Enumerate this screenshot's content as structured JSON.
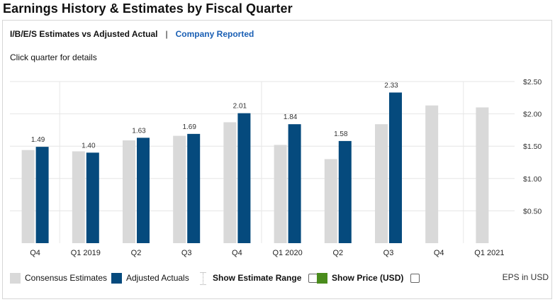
{
  "page": {
    "title": "Earnings History & Estimates by Fiscal Quarter",
    "tab_active": "I/B/E/S Estimates vs Adjusted Actual",
    "tab_separator": "|",
    "tab_link": "Company Reported",
    "hint": "Click quarter for details"
  },
  "chart_data": {
    "type": "bar",
    "categories": [
      "Q4",
      "Q1 2019",
      "Q2",
      "Q3",
      "Q4",
      "Q1 2020",
      "Q2",
      "Q3",
      "Q4",
      "Q1 2021"
    ],
    "series": [
      {
        "name": "Consensus Estimates",
        "values": [
          1.44,
          1.42,
          1.59,
          1.66,
          1.87,
          1.52,
          1.3,
          1.84,
          2.13,
          2.1
        ]
      },
      {
        "name": "Adjusted Actuals",
        "values": [
          1.49,
          1.4,
          1.63,
          1.69,
          2.01,
          1.84,
          1.58,
          2.33,
          null,
          null
        ]
      }
    ],
    "data_labels": [
      "1.49",
      "1.40",
      "1.63",
      "1.69",
      "2.01",
      "1.84",
      "1.58",
      "2.33",
      null,
      null
    ],
    "y_ticks": [
      {
        "value": 0.5,
        "label": "$0.50"
      },
      {
        "value": 1.0,
        "label": "$1.00"
      },
      {
        "value": 1.5,
        "label": "$1.50"
      },
      {
        "value": 2.0,
        "label": "$2.00"
      },
      {
        "value": 2.5,
        "label": "$2.50"
      }
    ],
    "ylim": [
      0,
      2.5
    ],
    "y_axis_side": "right",
    "grid": true,
    "legend_position": "bottom",
    "colors": {
      "estimate": "#d9d9d9",
      "actual": "#054a7d",
      "price": "#4a8c1c",
      "grid": "#e6e6e6",
      "label": "#333333"
    }
  },
  "legend": {
    "estimates_label": "Consensus Estimates",
    "actuals_label": "Adjusted Actuals",
    "range_label": "Show Estimate Range",
    "price_label": "Show Price (USD)",
    "units_label": "EPS in USD"
  }
}
